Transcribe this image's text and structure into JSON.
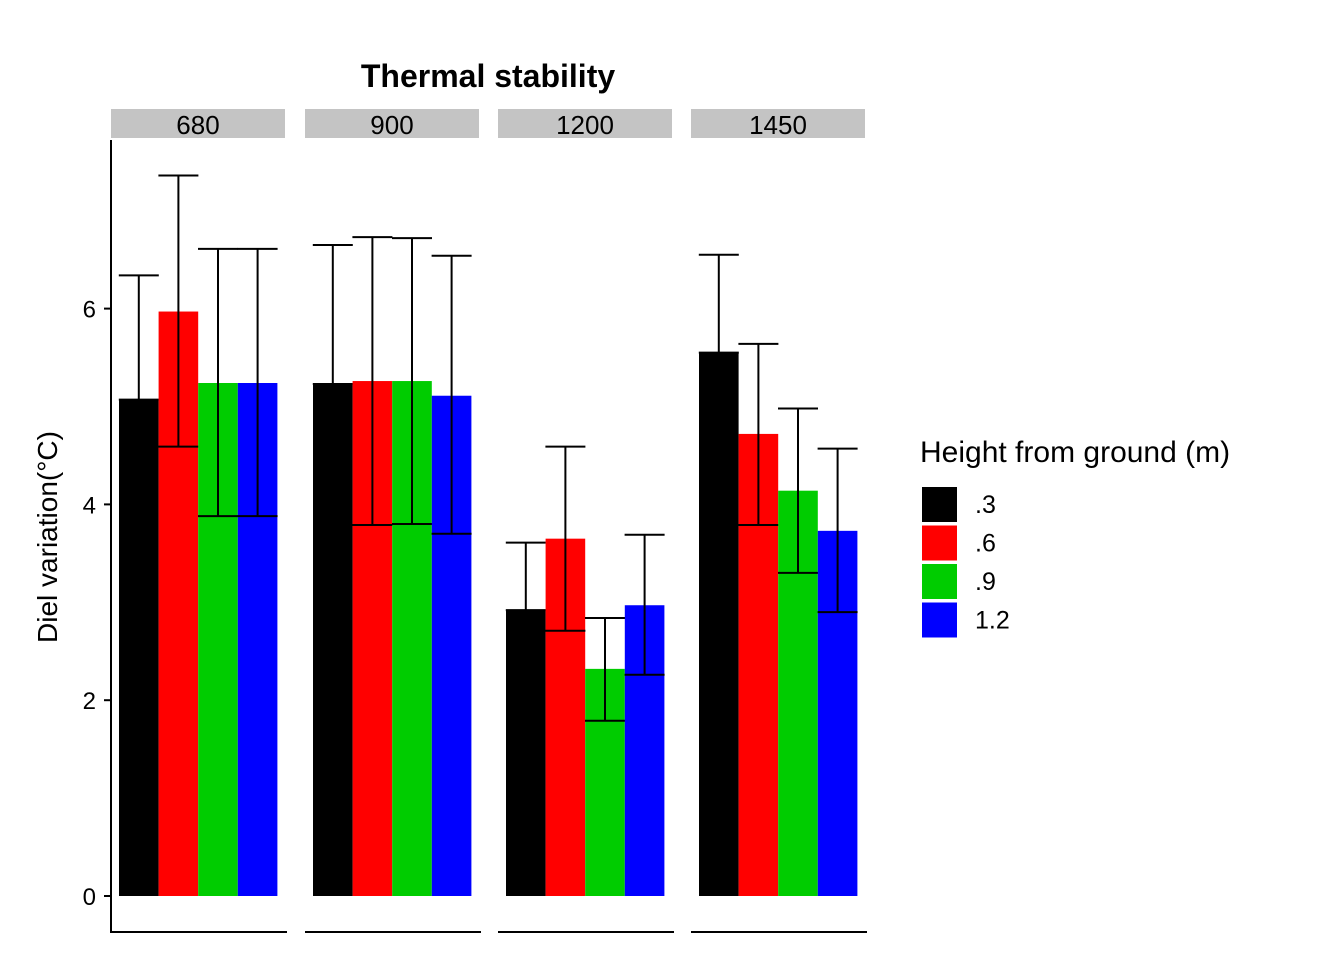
{
  "chart_data": {
    "type": "bar",
    "title": "Thermal stability",
    "ylabel": "Diel variation(°C)",
    "xlabel": "",
    "ylim": [
      0,
      7.6
    ],
    "yticks": [
      0,
      2,
      4,
      6
    ],
    "grid": false,
    "legend": {
      "title": "Height from ground (m)",
      "placement": "right",
      "entries": [
        {
          "label": ".3",
          "color": "#000000"
        },
        {
          "label": ".6",
          "color": "#ff0000"
        },
        {
          "label": ".9",
          "color": "#00cc00"
        },
        {
          "label": "1.2",
          "color": "#0000ff"
        }
      ]
    },
    "panels": [
      {
        "label": "680",
        "values": [
          5.07,
          5.97,
          5.24,
          5.24
        ],
        "err_low": [
          5.07,
          4.59,
          3.88,
          3.88
        ],
        "err_high": [
          6.34,
          7.36,
          6.61,
          6.61
        ]
      },
      {
        "label": "900",
        "values": [
          5.23,
          5.26,
          5.26,
          5.11
        ],
        "err_low": [
          5.23,
          3.79,
          3.8,
          3.7
        ],
        "err_high": [
          6.65,
          6.73,
          6.72,
          6.54
        ]
      },
      {
        "label": "1200",
        "values": [
          2.92,
          3.65,
          2.32,
          2.97
        ],
        "err_low": [
          2.92,
          2.71,
          1.79,
          2.26
        ],
        "err_high": [
          3.61,
          4.59,
          2.84,
          3.69
        ]
      },
      {
        "label": "1450",
        "values": [
          5.55,
          4.72,
          4.14,
          3.73
        ],
        "err_low": [
          5.55,
          3.79,
          3.3,
          2.9
        ],
        "err_high": [
          6.55,
          5.64,
          4.98,
          4.57
        ]
      }
    ]
  }
}
